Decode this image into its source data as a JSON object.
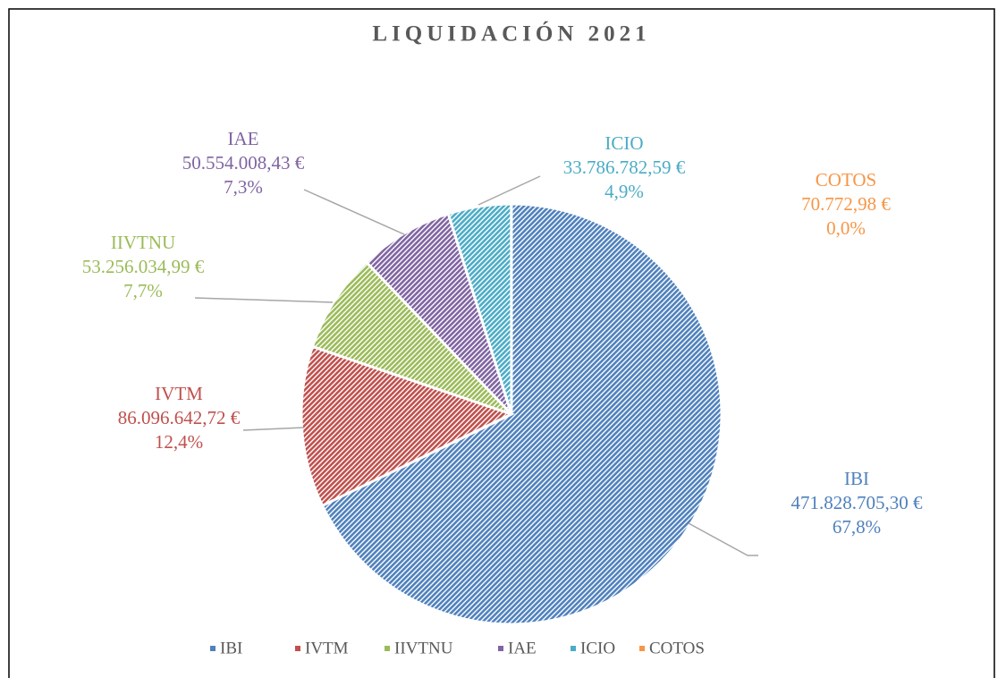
{
  "chart_data": {
    "type": "pie",
    "title": "LIQUIDACIÓN 2021",
    "categories": [
      "IBI",
      "IVTM",
      "IIVTNU",
      "IAE",
      "ICIO",
      "COTOS"
    ],
    "values": [
      471828705.3,
      86096642.72,
      53256034.99,
      50554008.43,
      33786782.59,
      70772.98
    ],
    "value_labels": [
      "471.828.705,30 €",
      "86.096.642,72 €",
      "53.256.034,99 €",
      "50.554.008,43 €",
      "33.786.782,59 €",
      "70.772,98 €"
    ],
    "percentages": [
      67.8,
      12.4,
      7.7,
      7.3,
      4.9,
      0.0
    ],
    "percentage_labels": [
      "67,8%",
      "12,4%",
      "7,7%",
      "7,3%",
      "4,9%",
      "0,0%"
    ],
    "colors": [
      "#4f81bd",
      "#c0504d",
      "#9bbb59",
      "#8064a2",
      "#4bacc6",
      "#f79646"
    ],
    "legend": "bottom"
  }
}
